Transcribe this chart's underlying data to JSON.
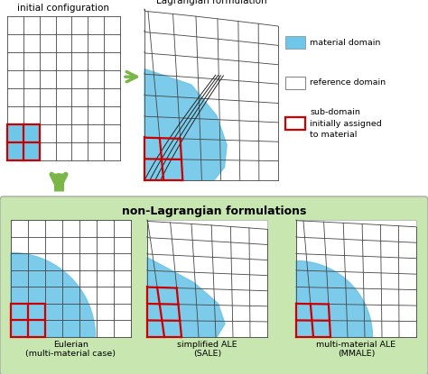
{
  "title_top_left": "initial configuration",
  "title_top_right": "Lagrangian formulation",
  "title_bottom": "non-Lagrangian formulations",
  "subtitle_eulerian": "Eulerian\n(multi-material case)",
  "subtitle_sale": "simplified ALE\n(SALE)",
  "subtitle_mmale": "multi-material ALE\n(MMALE)",
  "legend_material": "material domain",
  "legend_reference": "reference domain",
  "legend_subdomain": "sub-domain\ninitially assigned\nto material",
  "bg_color": "#ffffff",
  "bottom_panel_color": "#c8e6b0",
  "grid_color": "#444444",
  "material_color": "#6ec6e8",
  "subdomain_color": "#cc0000",
  "arrow_color": "#7ab648",
  "grid_lw": 0.6,
  "subdomain_lw": 1.6,
  "fig_w": 4.74,
  "fig_h": 4.15,
  "dpi": 100
}
